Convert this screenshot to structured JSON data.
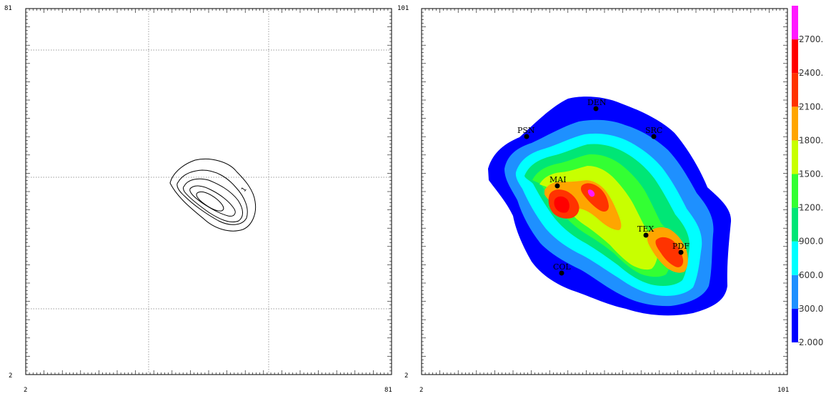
{
  "chart_data": [
    {
      "type": "contour",
      "panel": "left",
      "x_range": [
        2,
        81
      ],
      "y_range": [
        2,
        81
      ],
      "tick_labels": {
        "x_min": "2",
        "x_max": "81",
        "y_min": "2",
        "y_max": "81"
      },
      "grid": true,
      "contour_line_count": 5,
      "contour_annotations": [
        "1"
      ]
    },
    {
      "type": "heatmap",
      "panel": "right",
      "x_range": [
        2,
        101
      ],
      "y_range": [
        2,
        101
      ],
      "tick_labels": {
        "x_min": "2",
        "x_max": "101",
        "y_min": "2",
        "y_max": "101"
      },
      "grid": false,
      "colorbar": {
        "labels": [
          "2.000",
          "300.0",
          "600.0",
          "900.0",
          "1200.",
          "1500.",
          "1800.",
          "2100.",
          "2400.",
          "2700."
        ],
        "levels": [
          2,
          300,
          600,
          900,
          1200,
          1500,
          1800,
          2100,
          2400,
          2700,
          3000
        ],
        "colors": [
          "#0000ff",
          "#1e90ff",
          "#00ffff",
          "#00e676",
          "#33ff33",
          "#c8ff00",
          "#ffa500",
          "#ff3300",
          "#ff0000",
          "#ff1aff"
        ]
      },
      "sites": [
        {
          "label": "DEN"
        },
        {
          "label": "PSN"
        },
        {
          "label": "SRC"
        },
        {
          "label": "MAI"
        },
        {
          "label": "TEX"
        },
        {
          "label": "PDF"
        },
        {
          "label": "COL"
        }
      ]
    }
  ]
}
